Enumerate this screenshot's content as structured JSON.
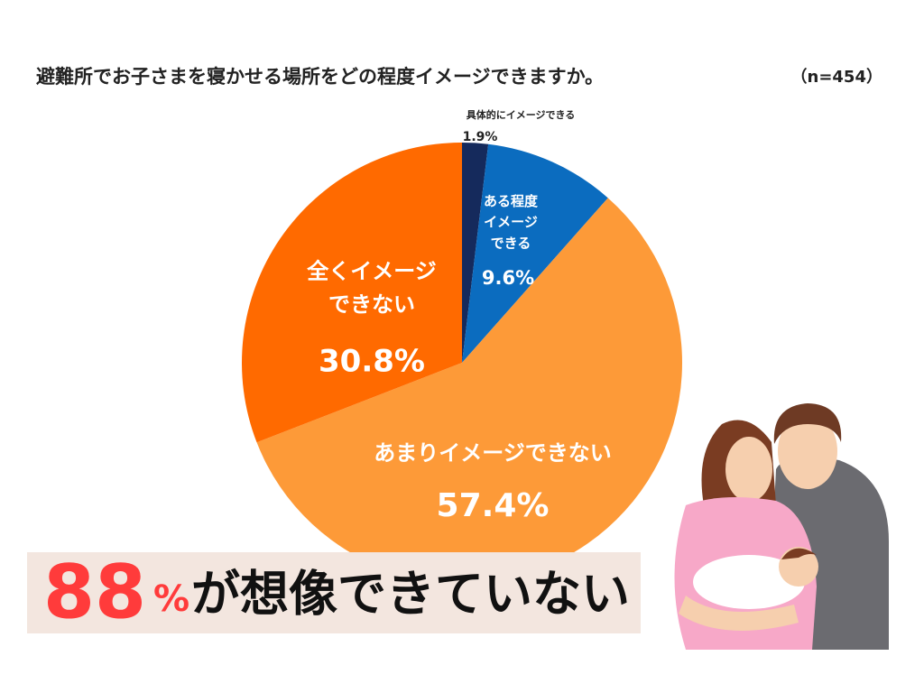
{
  "chart_data": {
    "type": "pie",
    "title": "避難所でお子さまを寝かせる場所をどの程度イメージできますか。",
    "subtitle": "（n=454）",
    "categories": [
      "具体的にイメージできる",
      "ある程度\nイメージ\nできる",
      "あまりイメージできない",
      "全くイメージ\nできない"
    ],
    "values": [
      1.9,
      9.6,
      57.4,
      30.8
    ],
    "value_labels": [
      "1.9%",
      "9.6%",
      "57.4%",
      "30.8%"
    ],
    "colors": [
      "#152a5c",
      "#0b6cbf",
      "#fd9a38",
      "#ff6a00"
    ],
    "annotation": {
      "number": "88",
      "unit": "%",
      "text": "が想像できていない"
    }
  }
}
